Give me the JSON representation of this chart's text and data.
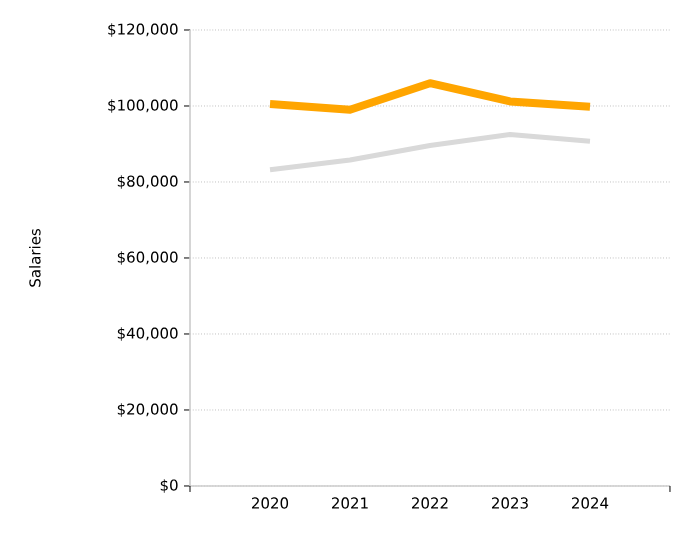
{
  "chart_data": {
    "type": "line",
    "ylabel": "Salaries",
    "categories": [
      "2020",
      "2021",
      "2022",
      "2023",
      "2024"
    ],
    "series": [
      {
        "color": "#ffa500",
        "values": [
          100500,
          99000,
          106000,
          101200,
          99800
        ]
      },
      {
        "color": "#d9d9d9",
        "values": [
          83200,
          85800,
          89600,
          92500,
          90700
        ]
      }
    ],
    "ylim": [
      0,
      120000
    ],
    "yticks": [
      {
        "value": 0,
        "label": "$0"
      },
      {
        "value": 20000,
        "label": "$20,000"
      },
      {
        "value": 40000,
        "label": "$40,000"
      },
      {
        "value": 60000,
        "label": "$60,000"
      },
      {
        "value": 80000,
        "label": "$80,000"
      },
      {
        "value": 100000,
        "label": "$100,000"
      },
      {
        "value": 120000,
        "label": "$120,000"
      }
    ],
    "grid": "y",
    "marker": "none",
    "line_style": "solid"
  }
}
